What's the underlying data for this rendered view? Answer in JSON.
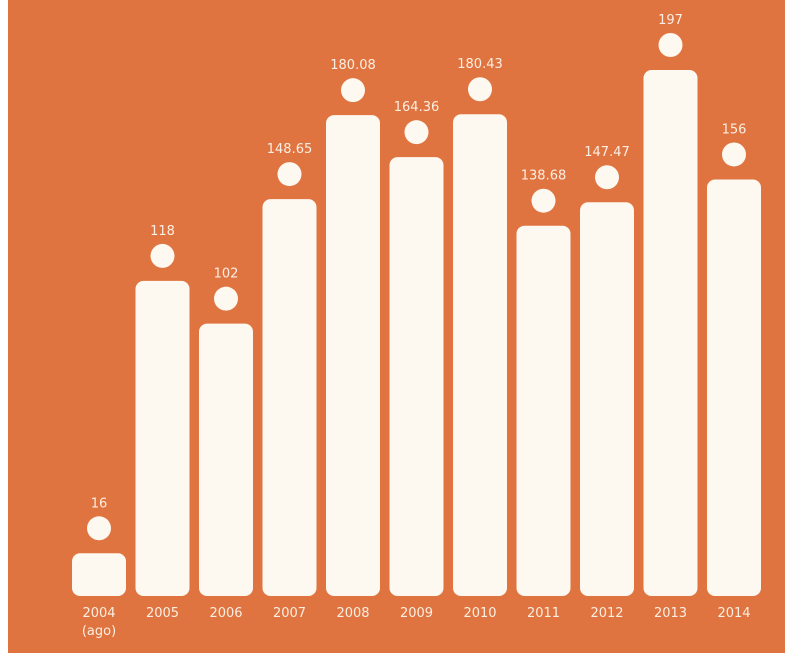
{
  "colors": {
    "background": "#e07440",
    "bar": "#fdf8f0",
    "text": "#fbeee2"
  },
  "chart_data": {
    "type": "bar",
    "categories": [
      "2004 (ago)",
      "2005",
      "2006",
      "2007",
      "2008",
      "2009",
      "2010",
      "2011",
      "2012",
      "2013",
      "2014"
    ],
    "category_lines": [
      [
        "2004",
        "(ago)"
      ],
      [
        "2005"
      ],
      [
        "2006"
      ],
      [
        "2007"
      ],
      [
        "2008"
      ],
      [
        "2009"
      ],
      [
        "2010"
      ],
      [
        "2011"
      ],
      [
        "2012"
      ],
      [
        "2013"
      ],
      [
        "2014"
      ]
    ],
    "values": [
      16,
      118,
      102,
      148.65,
      180.08,
      164.36,
      180.43,
      138.68,
      147.47,
      197,
      156
    ],
    "value_labels": [
      "16",
      "118",
      "102",
      "148.65",
      "180.08",
      "164.36",
      "180.43",
      "138.68",
      "147.47",
      "197",
      "156"
    ],
    "title": "",
    "xlabel": "",
    "ylabel": "",
    "ylim": [
      0,
      200
    ],
    "grid": false,
    "legend": "none"
  }
}
